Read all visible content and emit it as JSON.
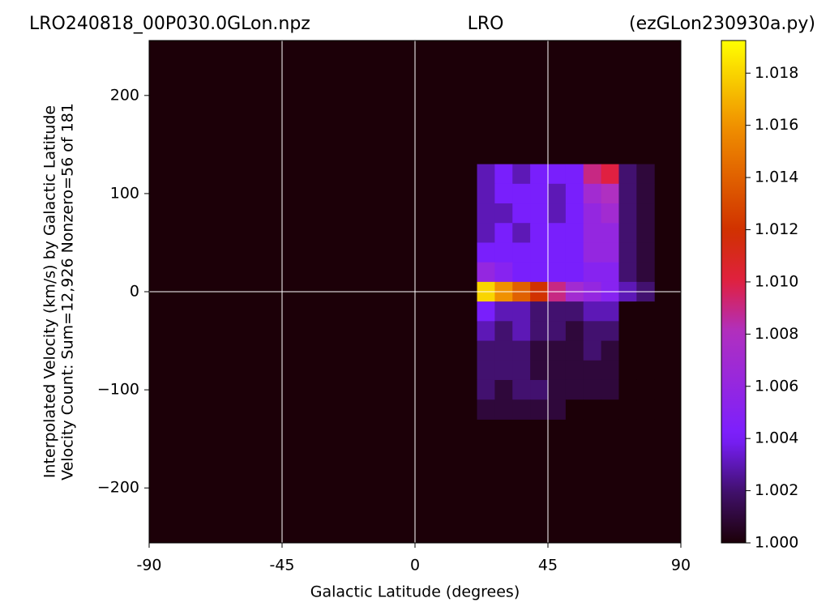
{
  "chart_data": {
    "type": "heatmap",
    "title_left": "LRO240818_00P030.0GLon.npz",
    "title": "LRO",
    "title_right": "(ezGLon230930a.py)",
    "xlabel": "Galactic Latitude (degrees)",
    "ylabel": [
      "Interpolated Velocity (km/s) by Galactic Latitude",
      "Velocity Count: Sum=12,926 Nonzero=56 of 181"
    ],
    "xlim": [
      -90,
      90
    ],
    "xticks": [
      -90,
      -45,
      0,
      45,
      90
    ],
    "ylim": [
      -256,
      256
    ],
    "yticks": [
      {
        "value": -200,
        "label": "−200"
      },
      {
        "value": -100,
        "label": "−100"
      },
      0,
      100,
      200
    ],
    "reference_lines": {
      "x": [
        -45,
        0,
        45
      ],
      "y": [
        0
      ]
    },
    "zlim": [
      1.0,
      1.01925
    ],
    "zticks": [
      {
        "value": 1.0,
        "label": "1.000"
      },
      1.002,
      1.004,
      1.006,
      1.008,
      {
        "value": 1.01,
        "label": "1.010"
      },
      1.012,
      1.014,
      1.016,
      1.018
    ],
    "colormap": "gnuplot",
    "x": [
      24,
      30,
      36,
      42,
      48,
      54,
      60,
      66,
      72,
      78
    ],
    "y": [
      120,
      100,
      80,
      60,
      40,
      20,
      0,
      -20,
      -40,
      -60,
      -80,
      -100,
      -120
    ],
    "z": [
      [
        1.003,
        1.004,
        1.003,
        1.004,
        1.004,
        1.004,
        1.009,
        1.01,
        1.002,
        1.001
      ],
      [
        1.003,
        1.004,
        1.004,
        1.004,
        1.003,
        1.004,
        1.007,
        1.008,
        1.002,
        1.001
      ],
      [
        1.003,
        1.003,
        1.004,
        1.004,
        1.003,
        1.004,
        1.006,
        1.007,
        1.002,
        1.001
      ],
      [
        1.003,
        1.004,
        1.003,
        1.004,
        1.004,
        1.004,
        1.006,
        1.006,
        1.002,
        1.001
      ],
      [
        1.004,
        1.004,
        1.004,
        1.004,
        1.004,
        1.004,
        1.006,
        1.006,
        1.002,
        1.001
      ],
      [
        1.006,
        1.005,
        1.004,
        1.004,
        1.004,
        1.004,
        1.005,
        1.005,
        1.002,
        1.001
      ],
      [
        1.018,
        1.016,
        1.014,
        1.012,
        1.009,
        1.007,
        1.006,
        1.005,
        1.003,
        1.002
      ],
      [
        1.004,
        1.003,
        1.003,
        1.002,
        1.002,
        1.002,
        1.003,
        1.003,
        1.0,
        1.0
      ],
      [
        1.003,
        1.002,
        1.003,
        1.002,
        1.002,
        1.001,
        1.002,
        1.002,
        1.0,
        1.0
      ],
      [
        1.002,
        1.002,
        1.002,
        1.001,
        1.001,
        1.001,
        1.002,
        1.001,
        1.0,
        1.0
      ],
      [
        1.002,
        1.002,
        1.002,
        1.001,
        1.001,
        1.001,
        1.001,
        1.001,
        1.0,
        1.0
      ],
      [
        1.002,
        1.001,
        1.002,
        1.002,
        1.001,
        1.001,
        1.001,
        1.001,
        1.0,
        1.0
      ],
      [
        1.001,
        1.001,
        1.001,
        1.001,
        1.001,
        1.0,
        1.0,
        1.0,
        1.0,
        1.0
      ]
    ]
  }
}
